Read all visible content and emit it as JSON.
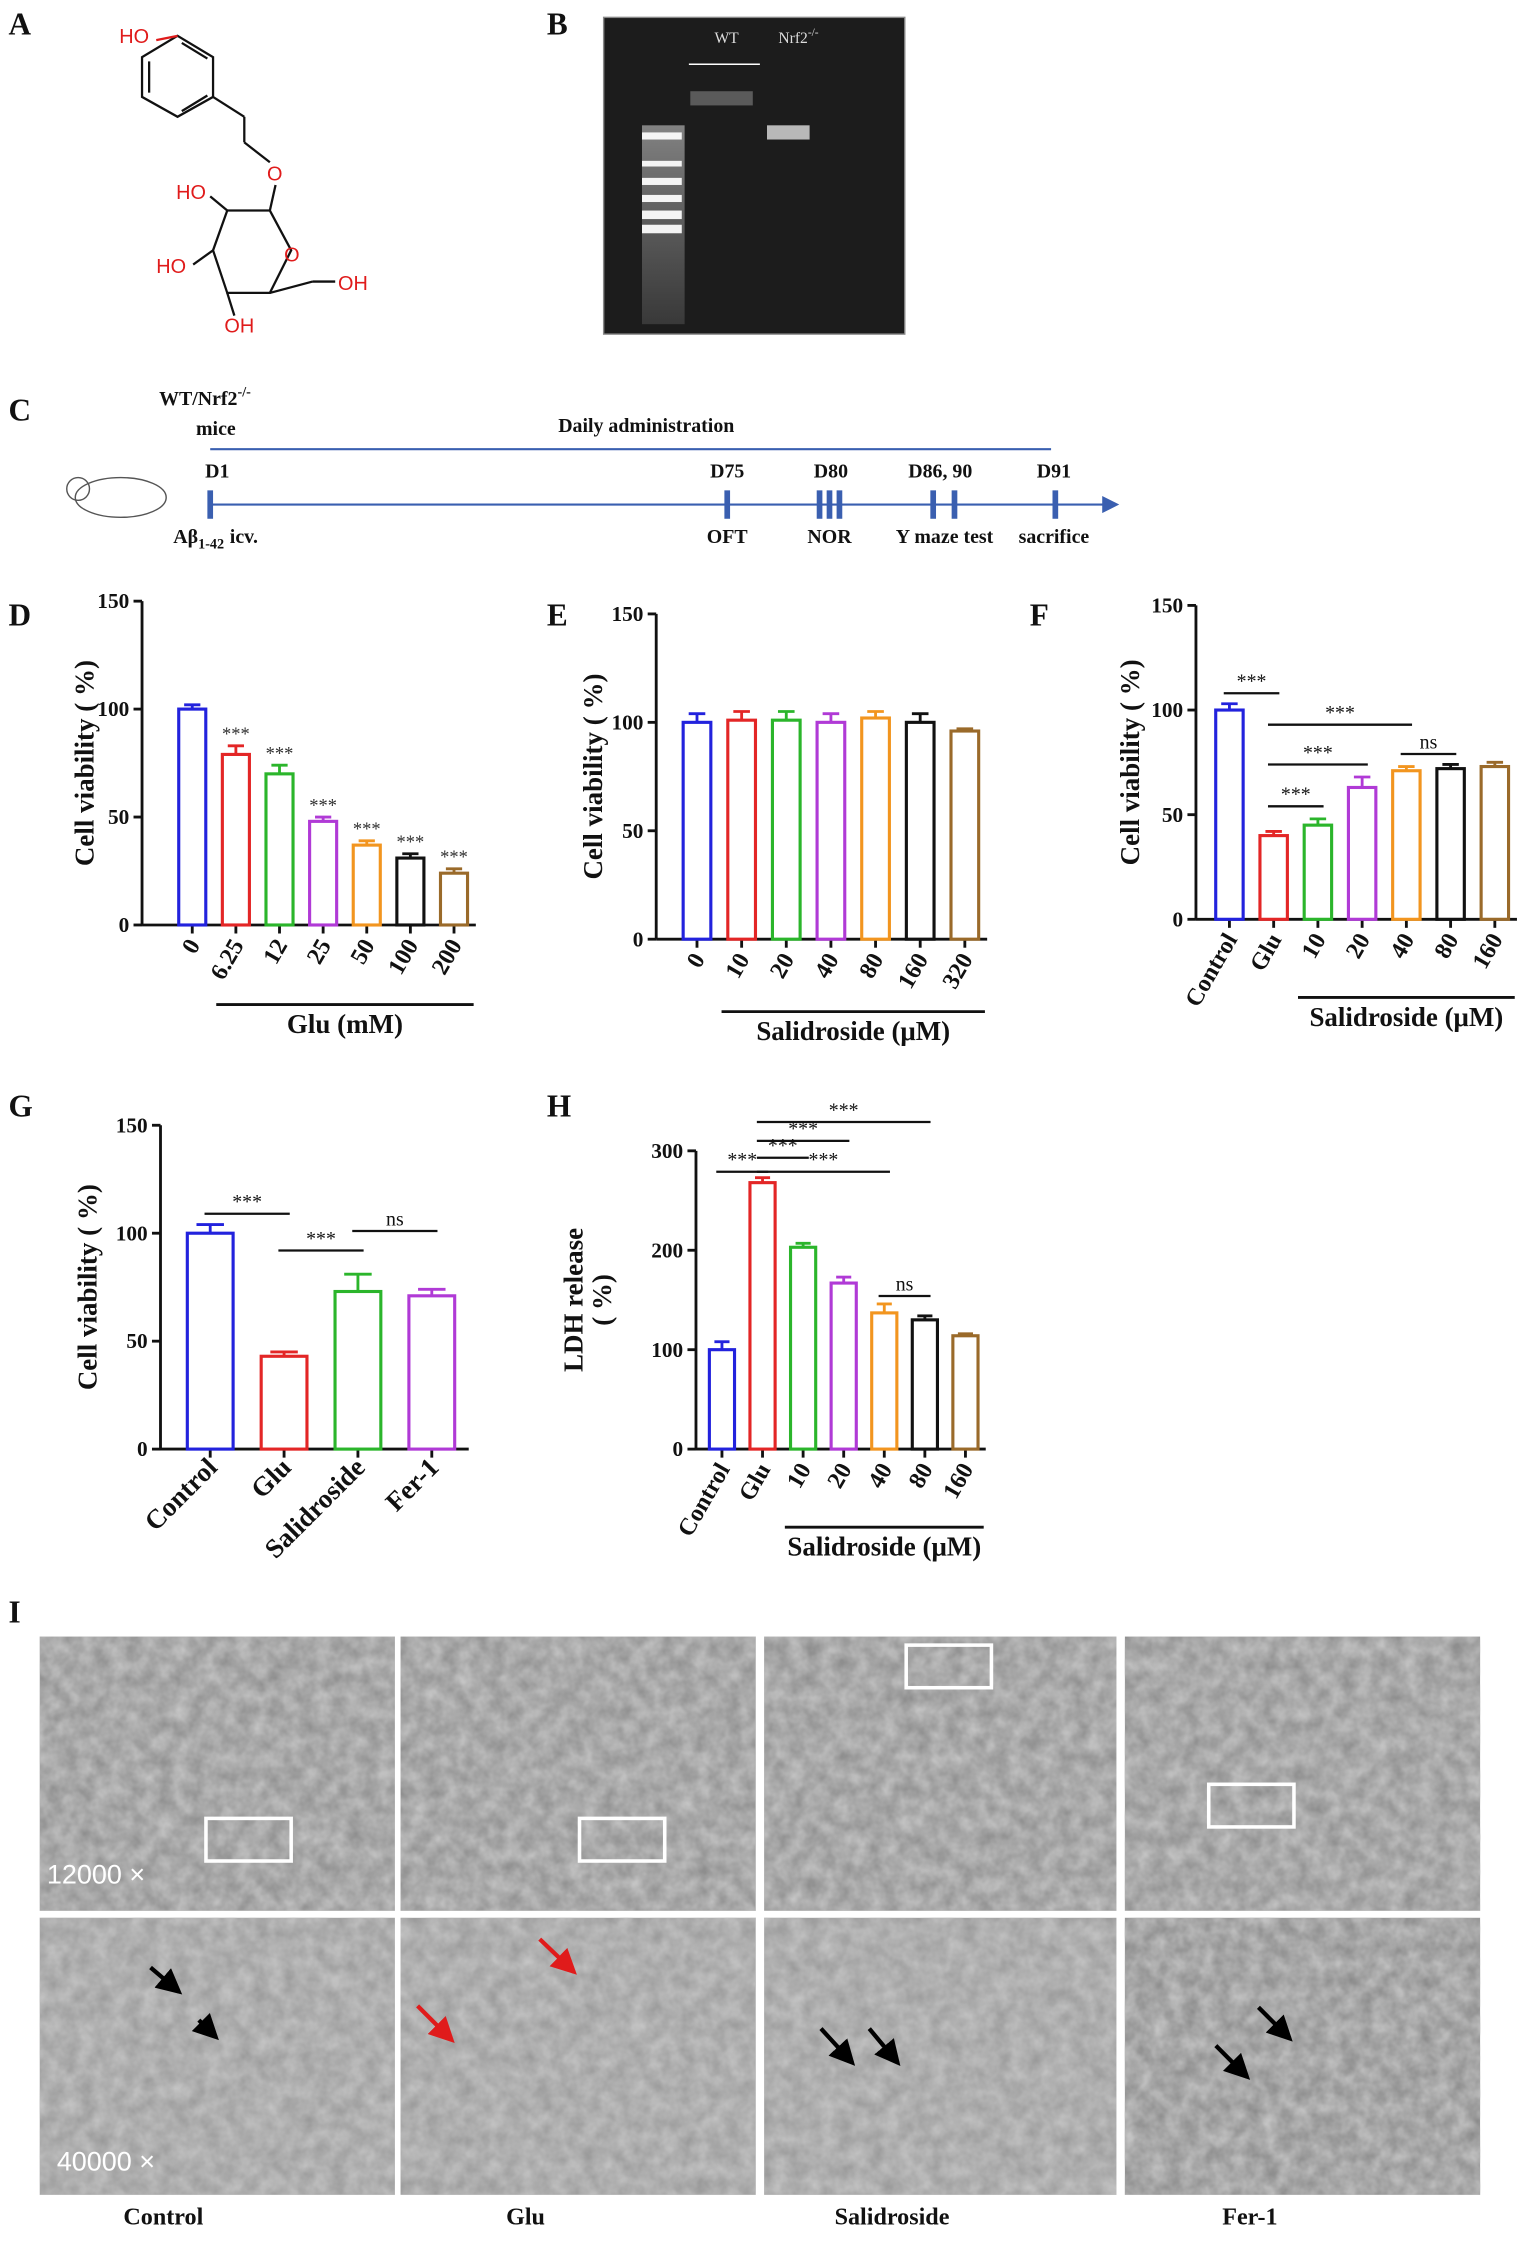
{
  "panel_labels": [
    "A",
    "B",
    "C",
    "D",
    "E",
    "F",
    "G",
    "H",
    "I"
  ],
  "structure": {
    "atoms": [
      "HO",
      "O",
      "HO",
      "HO",
      "O",
      "OH",
      "OH"
    ]
  },
  "gel": {
    "lane_1": "WT",
    "lane_2": "Nrf2",
    "lane_2_sup": "-/-"
  },
  "timeline": {
    "group": "WT/Nrf2",
    "group_sup": "-/-",
    "group_line2": "mice",
    "span_label": "Daily administration",
    "days": [
      "D1",
      "D75",
      "D80",
      "D86, 90",
      "D91"
    ],
    "events": [
      "OFT",
      "NOR",
      "Y maze test",
      "sacrifice"
    ],
    "injection": "Aβ",
    "injection_sub": "1-42",
    "injection_route": "icv."
  },
  "chart_data": [
    {
      "type": "bar",
      "y_label": [
        "Cell viability ( %)"
      ],
      "categories": [
        "0",
        "6.25",
        "12",
        "25",
        "50",
        "100",
        "200"
      ],
      "values": [
        100,
        79,
        70,
        48,
        37,
        31,
        24
      ],
      "errors": [
        2,
        4,
        4,
        2,
        2,
        2,
        2
      ],
      "colors": [
        "#2222dd",
        "#e32626",
        "#2bb52b",
        "#b03ad6",
        "#f2951f",
        "#111111",
        "#9a6a2a"
      ],
      "annotations": [
        "***",
        "***",
        "***",
        "***",
        "***",
        "***"
      ],
      "group_label": "Glu (mM)",
      "ylim": [
        0,
        150
      ],
      "yticks": [
        0,
        50,
        100,
        150
      ]
    },
    {
      "type": "bar",
      "y_label": [
        "Cell viability ( %)"
      ],
      "categories": [
        "0",
        "10",
        "20",
        "40",
        "80",
        "160",
        "320"
      ],
      "values": [
        100,
        101,
        101,
        100,
        102,
        100,
        96
      ],
      "errors": [
        4,
        4,
        4,
        4,
        3,
        4,
        1
      ],
      "colors": [
        "#2222dd",
        "#e32626",
        "#2bb52b",
        "#b03ad6",
        "#f2951f",
        "#111111",
        "#9a6a2a"
      ],
      "group_label": "Salidroside (μM)",
      "ylim": [
        0,
        150
      ],
      "yticks": [
        0,
        50,
        100,
        150
      ]
    },
    {
      "type": "bar",
      "y_label": [
        "Cell viability ( %)"
      ],
      "categories": [
        "Control",
        "Glu",
        "10",
        "20",
        "40",
        "80",
        "160"
      ],
      "values": [
        100,
        40,
        45,
        63,
        71,
        72,
        73
      ],
      "errors": [
        3,
        2,
        3,
        5,
        2,
        2,
        2
      ],
      "colors": [
        "#2222dd",
        "#e32626",
        "#2bb52b",
        "#b03ad6",
        "#f2951f",
        "#111111",
        "#9a6a2a"
      ],
      "comparisons": [
        "***",
        "***",
        "ns",
        "***",
        "***"
      ],
      "group_label": "Salidroside (μM)",
      "ylim": [
        0,
        150
      ],
      "yticks": [
        0,
        50,
        100,
        150
      ]
    },
    {
      "type": "bar",
      "y_label": [
        "Cell viability ( %)"
      ],
      "categories": [
        "Control",
        "Glu",
        "Salidroside",
        "Fer-1"
      ],
      "values": [
        100,
        43,
        73,
        71
      ],
      "errors": [
        4,
        2,
        8,
        3
      ],
      "colors": [
        "#2222dd",
        "#e32626",
        "#2bb52b",
        "#b03ad6"
      ],
      "comparisons": [
        "***",
        "ns",
        "***"
      ],
      "ylim": [
        0,
        150
      ],
      "yticks": [
        0,
        50,
        100,
        150
      ]
    },
    {
      "type": "bar",
      "y_label": [
        "LDH  release",
        "( %)"
      ],
      "categories": [
        "Control",
        "Glu",
        "10",
        "20",
        "40",
        "80",
        "160"
      ],
      "values": [
        100,
        268,
        203,
        167,
        137,
        130,
        114
      ],
      "errors": [
        8,
        5,
        4,
        6,
        9,
        4,
        2
      ],
      "colors": [
        "#2222dd",
        "#e32626",
        "#2bb52b",
        "#b03ad6",
        "#f2951f",
        "#111111",
        "#9a6a2a"
      ],
      "comparisons": [
        "***",
        "***",
        "***",
        "***",
        "***",
        "ns"
      ],
      "group_label": "Salidroside (μM)",
      "ylim": [
        0,
        300
      ],
      "yticks": [
        0,
        100,
        200,
        300
      ]
    }
  ],
  "tem": {
    "columns": [
      "Control",
      "Glu",
      "Salidroside",
      "Fer-1"
    ],
    "magnifications": [
      "12000 ×",
      "40000 ×"
    ]
  }
}
